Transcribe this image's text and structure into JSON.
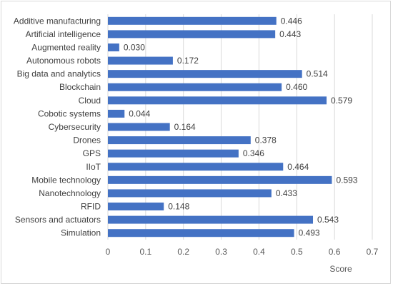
{
  "chart_data": {
    "type": "bar",
    "orientation": "horizontal",
    "categories": [
      "Additive manufacturing",
      "Artificial intelligence",
      "Augmented reality",
      "Autonomous robots",
      "Big data and analytics",
      "Blockchain",
      "Cloud",
      "Cobotic systems",
      "Cybersecurity",
      "Drones",
      "GPS",
      "IIoT",
      "Mobile technology",
      "Nanotechnology",
      "RFID",
      "Sensors and actuators",
      "Simulation"
    ],
    "values": [
      0.446,
      0.443,
      0.03,
      0.172,
      0.514,
      0.46,
      0.579,
      0.044,
      0.164,
      0.378,
      0.346,
      0.464,
      0.593,
      0.433,
      0.148,
      0.543,
      0.493
    ],
    "value_labels": [
      "0.446",
      "0.443",
      "0.030",
      "0.172",
      "0.514",
      "0.460",
      "0.579",
      "0.044",
      "0.164",
      "0.378",
      "0.346",
      "0.464",
      "0.593",
      "0.433",
      "0.148",
      "0.543",
      "0.493"
    ],
    "xlabel": "Score",
    "xlim": [
      0,
      0.7
    ],
    "xticks": [
      "0",
      "0.1",
      "0.2",
      "0.3",
      "0.4",
      "0.5",
      "0.6",
      "0.7"
    ],
    "grid": true,
    "legend": "none",
    "bar_color": "#4472c4"
  }
}
